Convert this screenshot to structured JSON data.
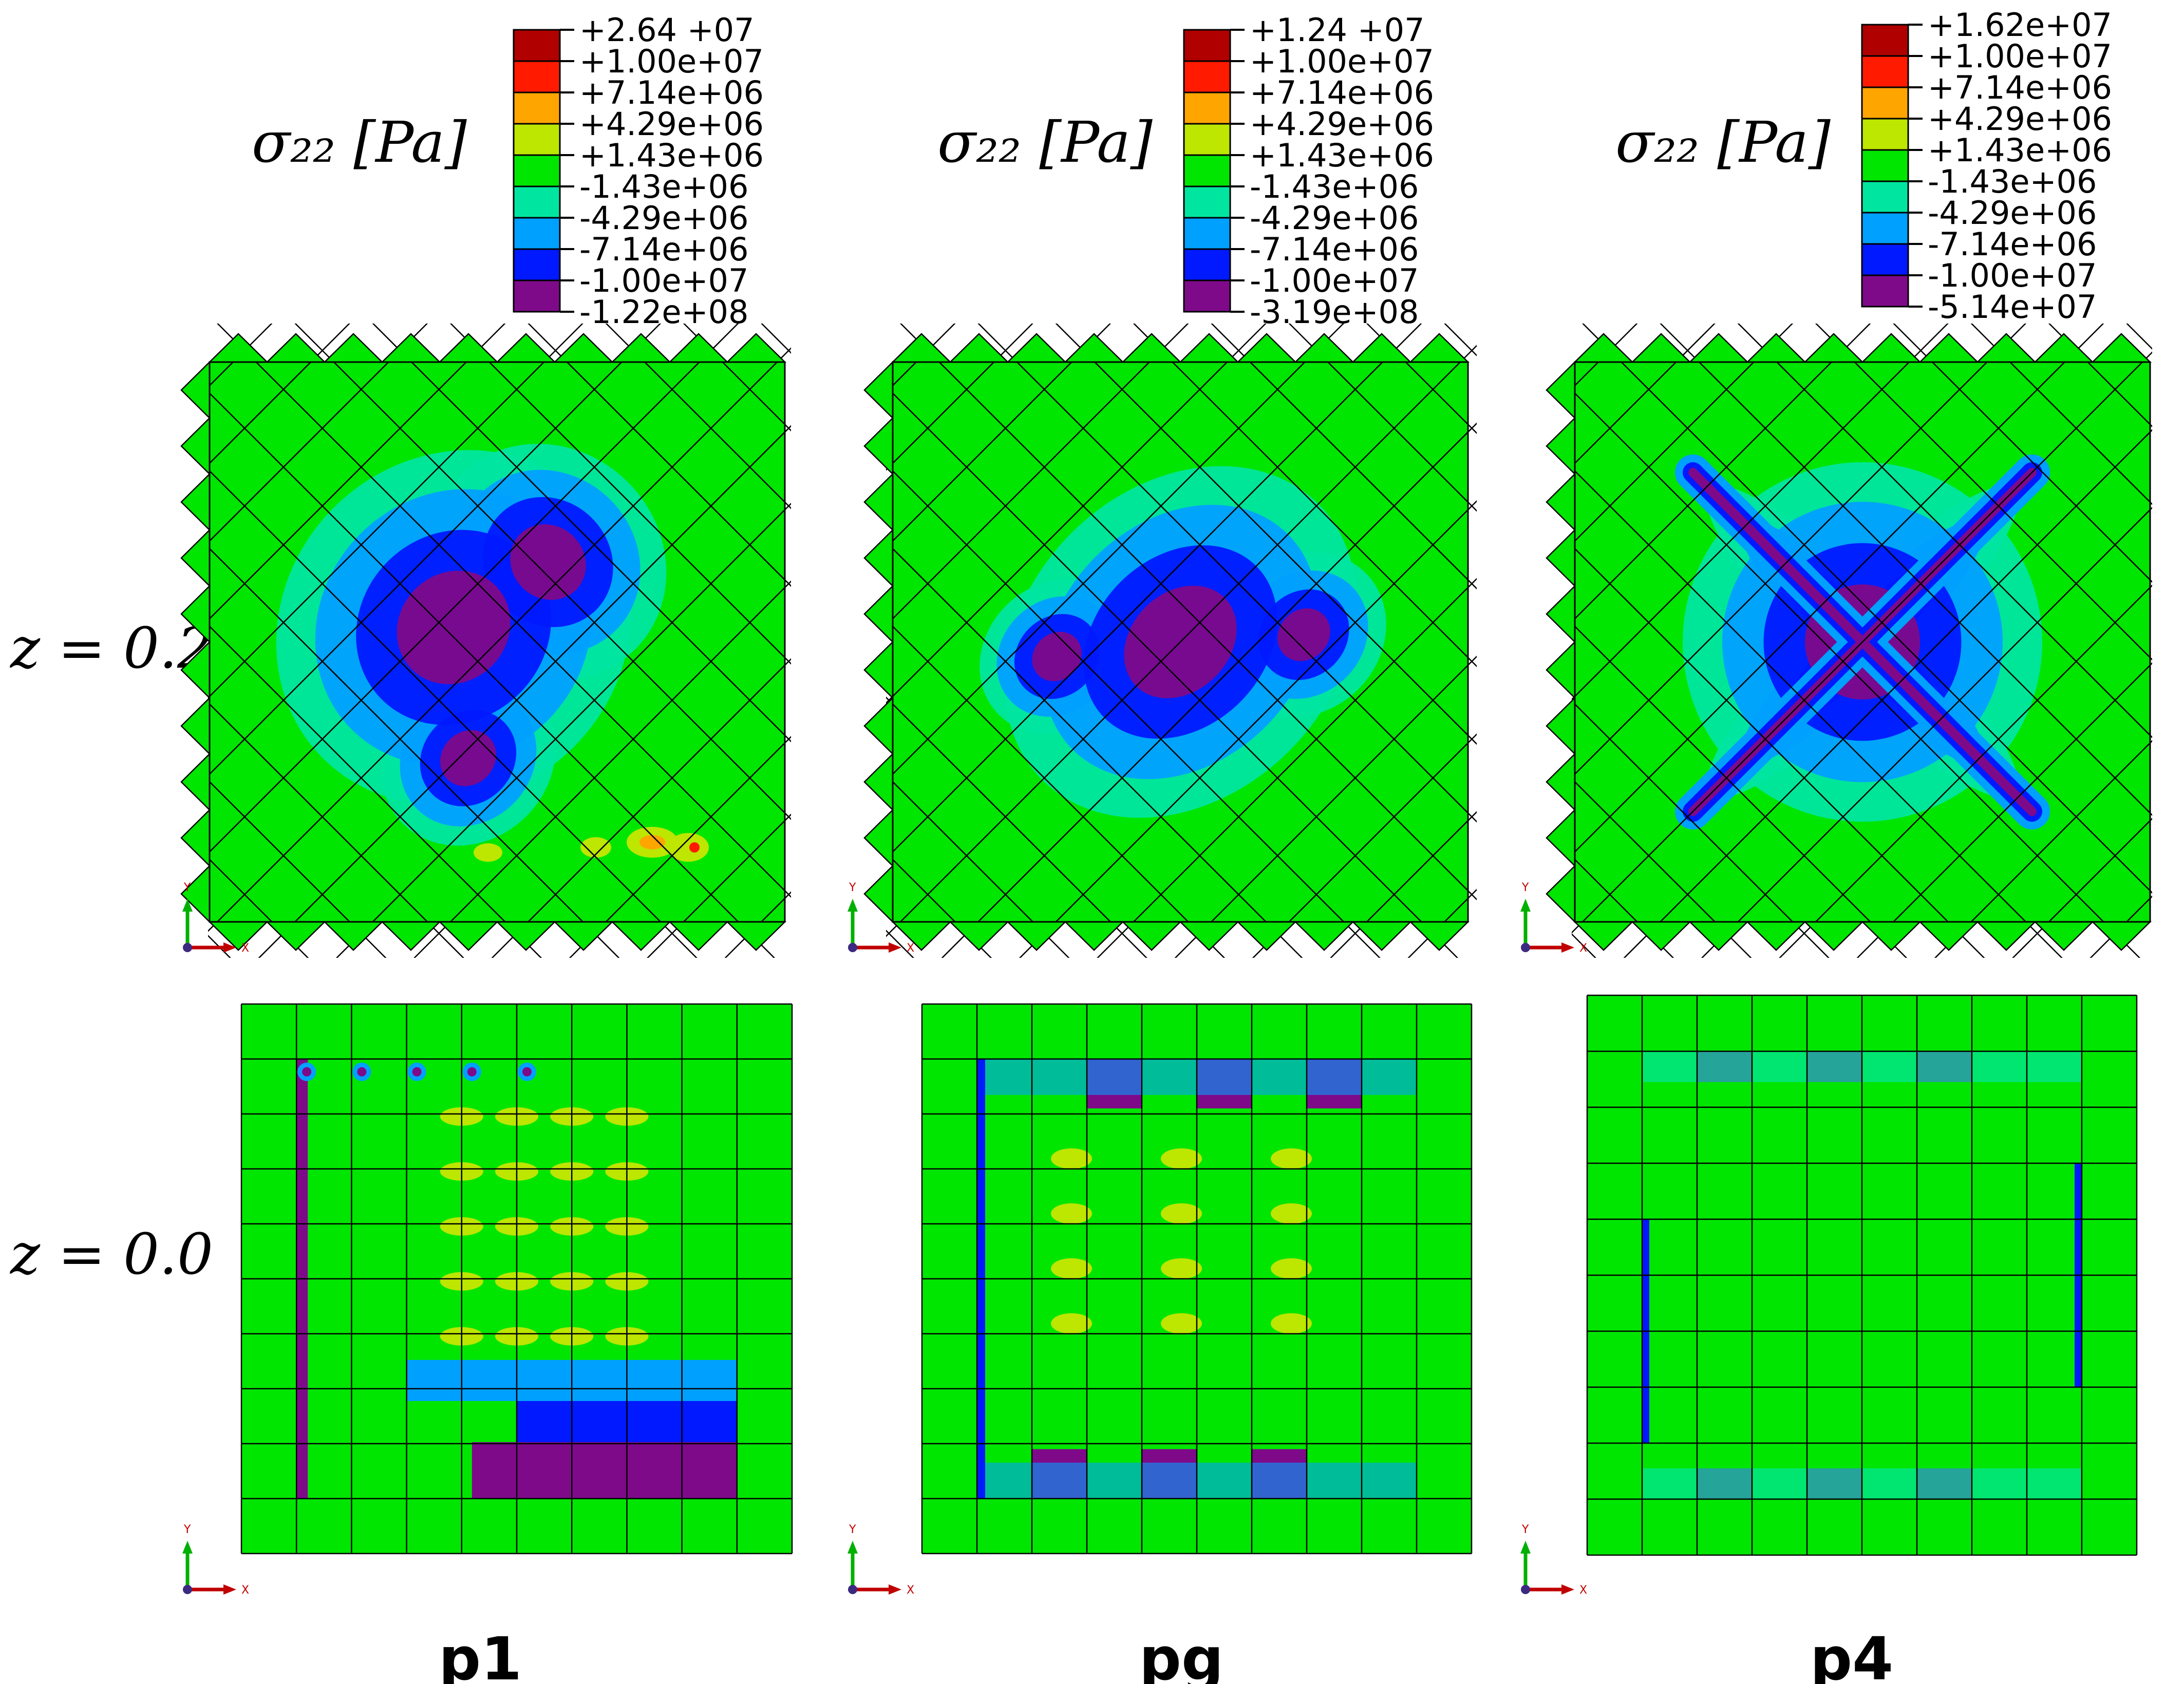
{
  "figure": {
    "quantity_label": "σ₂₂ [Pa]",
    "row_labels": [
      "z = 0.2",
      "z = 0.0"
    ],
    "column_labels": [
      "p1",
      "pg",
      "p4"
    ],
    "axis_triad": {
      "y": "Y",
      "x": "X"
    }
  },
  "legend_colors": [
    "#b00000",
    "#ff1a00",
    "#ffa500",
    "#bde600",
    "#00e600",
    "#00e6a0",
    "#00a0ff",
    "#0019ff",
    "#7e0a8a"
  ],
  "legends": [
    {
      "name": "p1",
      "ticks": [
        "+2.64  +07",
        "+1.00e+07",
        "+7.14e+06",
        "+4.29e+06",
        "+1.43e+06",
        "-1.43e+06",
        "-4.29e+06",
        "-7.14e+06",
        "-1.00e+07",
        "-1.22e+08"
      ]
    },
    {
      "name": "pg",
      "ticks": [
        "+1.24  +07",
        "+1.00e+07",
        "+7.14e+06",
        "+4.29e+06",
        "+1.43e+06",
        "-1.43e+06",
        "-4.29e+06",
        "-7.14e+06",
        "-1.00e+07",
        "-3.19e+08"
      ]
    },
    {
      "name": "p4",
      "ticks": [
        "+1.62e+07",
        "+1.00e+07",
        "+7.14e+06",
        "+4.29e+06",
        "+1.43e+06",
        "-1.43e+06",
        "-4.29e+06",
        "-7.14e+06",
        "-1.00e+07",
        "-5.14e+07"
      ]
    }
  ],
  "colors": {
    "green": "#00e600",
    "teal": "#00e6a0",
    "lightblue": "#00a0ff",
    "blue": "#0019ff",
    "purple": "#7e0a8a",
    "yellowgreen": "#bde600",
    "orange": "#ffa500",
    "red": "#ff1a00",
    "axis_y": "#00b000",
    "axis_x": "#c00000",
    "axis_dot": "#3b2a80"
  }
}
